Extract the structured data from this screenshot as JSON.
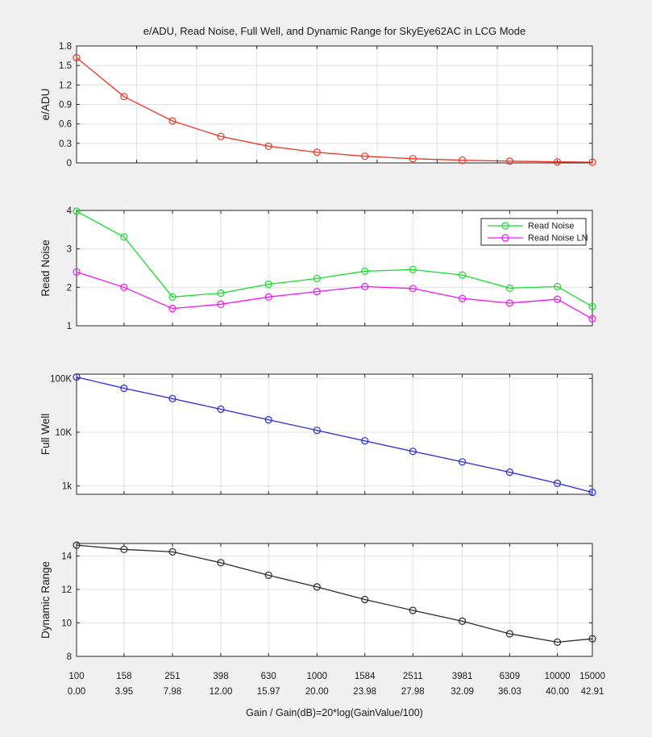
{
  "chart_data": {
    "type": "line",
    "title": "e/ADU, Read Noise, Full Well, and Dynamic Range for SkyEye62AC in LCG Mode",
    "x_axis_label": "Gain / Gain(dB)=20*log(GainValue/100)",
    "x_scale": "log-gain (linear in dB)",
    "x_gain": [
      100,
      158,
      251,
      398,
      630,
      1000,
      1584,
      2511,
      3981,
      6309,
      10000,
      15000
    ],
    "x_db": [
      0.0,
      3.95,
      7.98,
      12.0,
      15.97,
      20.0,
      23.98,
      27.98,
      32.09,
      36.03,
      40.0,
      42.91
    ],
    "x_tick_labels_gain": [
      "100",
      "158",
      "251",
      "398",
      "630",
      "1000",
      "1584",
      "2511",
      "3981",
      "6309",
      "10000",
      "15000"
    ],
    "x_tick_labels_db": [
      "0.00",
      "3.95",
      "7.98",
      "12.00",
      "15.97",
      "20.00",
      "23.98",
      "27.98",
      "32.09",
      "36.03",
      "40.00",
      "42.91"
    ],
    "style": {
      "figure_bg": "#f0f0f0",
      "plot_bg": "#ffffff",
      "grid": "#e0e0e0",
      "axis": "#262626",
      "text": "#1a1a1a"
    },
    "panels": [
      {
        "ylabel": "e/ADU",
        "y_scale": "linear",
        "ylim": [
          0,
          1.8
        ],
        "yticks": [
          0,
          0.3,
          0.6,
          0.9,
          1.2,
          1.5,
          1.8
        ],
        "ytick_labels": [
          "0",
          "0.3",
          "0.6",
          "0.9",
          "1.2",
          "1.5",
          "1.8"
        ],
        "xticks_db": [
          0,
          5,
          10,
          15,
          20,
          25,
          30,
          35,
          40
        ],
        "series": [
          {
            "name": "e/ADU",
            "color": "#ee3322",
            "marker": "o",
            "values": [
              1.62,
              1.02,
              0.645,
              0.407,
              0.257,
              0.162,
              0.102,
              0.064,
              0.041,
              0.026,
              0.016,
              0.011
            ]
          }
        ]
      },
      {
        "ylabel": "Read Noise",
        "y_scale": "linear",
        "ylim": [
          1,
          4
        ],
        "yticks": [
          1,
          2,
          3,
          4
        ],
        "ytick_labels": [
          "1",
          "2",
          "3",
          "4"
        ],
        "series": [
          {
            "name": "Read Noise",
            "color": "#17dd2c",
            "marker": "o",
            "values": [
              3.98,
              3.31,
              1.75,
              1.85,
              2.08,
              2.23,
              2.42,
              2.46,
              2.32,
              1.98,
              2.02,
              1.5
            ]
          },
          {
            "name": "Read Noise LN",
            "color": "#f414f4",
            "marker": "o",
            "values": [
              2.4,
              2.0,
              1.45,
              1.56,
              1.75,
              1.89,
              2.02,
              1.97,
              1.71,
              1.59,
              1.69,
              1.18
            ]
          }
        ],
        "legend": {
          "entries": [
            "Read Noise",
            "Read Noise LN"
          ],
          "location": "northeast"
        }
      },
      {
        "ylabel": "Full Well",
        "y_scale": "log",
        "ylim": [
          700,
          120000
        ],
        "yticks": [
          1000,
          10000,
          100000
        ],
        "ytick_labels": [
          "1k",
          "10K",
          "100K"
        ],
        "series": [
          {
            "name": "Full Well",
            "color": "#2929db",
            "marker": "o",
            "values": [
              106000,
              65500,
              42000,
              26700,
              17000,
              10800,
              6900,
              4400,
              2800,
              1800,
              1120,
              760
            ]
          }
        ]
      },
      {
        "ylabel": "Dynamic Range",
        "y_scale": "linear",
        "ylim": [
          8,
          14.75
        ],
        "yticks": [
          8,
          10,
          12,
          14
        ],
        "ytick_labels": [
          "8",
          "10",
          "12",
          "14"
        ],
        "series": [
          {
            "name": "Dynamic Range",
            "color": "#2b2b2b",
            "marker": "o",
            "values": [
              14.65,
              14.4,
              14.25,
              13.6,
              12.85,
              12.15,
              11.4,
              10.75,
              10.1,
              9.35,
              8.85,
              9.05
            ]
          }
        ]
      }
    ]
  }
}
